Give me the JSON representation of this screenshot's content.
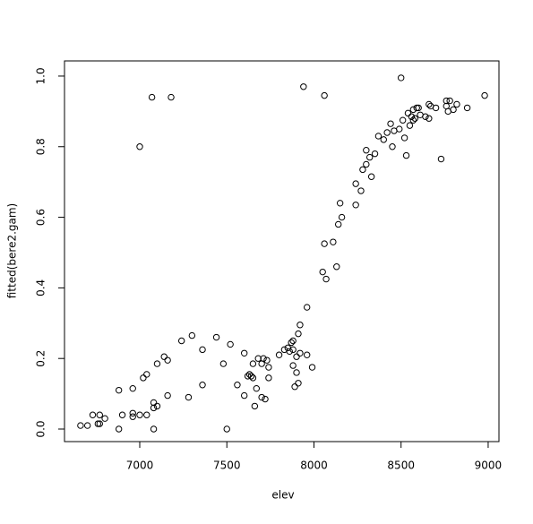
{
  "chart_data": {
    "type": "scatter",
    "x_label": "elev",
    "y_label": "fitted(bere2.gam)",
    "x": [
      6660,
      6700,
      6730,
      6760,
      6770,
      6770,
      6800,
      6880,
      6880,
      6900,
      6960,
      6960,
      6960,
      7000,
      7000,
      7020,
      7040,
      7040,
      7080,
      7080,
      7070,
      7080,
      7100,
      7100,
      7140,
      7160,
      7160,
      7180,
      7240,
      7280,
      7300,
      7360,
      7360,
      7440,
      7480,
      7500,
      7520,
      7560,
      7600,
      7600,
      7620,
      7630,
      7640,
      7650,
      7650,
      7660,
      7670,
      7680,
      7700,
      7710,
      7700,
      7720,
      7730,
      7740,
      7740,
      7800,
      7830,
      7850,
      7860,
      7870,
      7880,
      7880,
      7880,
      7890,
      7900,
      7900,
      7910,
      7910,
      7920,
      7920,
      7940,
      7960,
      7990,
      7960,
      8050,
      8060,
      8060,
      8070,
      8110,
      8130,
      8140,
      8150,
      8160,
      8240,
      8240,
      8270,
      8280,
      8300,
      8300,
      8320,
      8330,
      8350,
      8370,
      8400,
      8420,
      8440,
      8450,
      8460,
      8490,
      8500,
      8510,
      8520,
      8530,
      8540,
      8550,
      8560,
      8570,
      8570,
      8580,
      8590,
      8600,
      8610,
      8640,
      8660,
      8660,
      8670,
      8700,
      8730,
      8760,
      8760,
      8780,
      8770,
      8800,
      8820,
      8880,
      8980
    ],
    "y": [
      0.01,
      0.01,
      0.04,
      0.015,
      0.04,
      0.015,
      0.03,
      0.11,
      0.0,
      0.04,
      0.115,
      0.045,
      0.035,
      0.04,
      0.8,
      0.145,
      0.155,
      0.04,
      0.075,
      0.06,
      0.94,
      0.0,
      0.185,
      0.065,
      0.205,
      0.195,
      0.095,
      0.94,
      0.25,
      0.09,
      0.265,
      0.125,
      0.225,
      0.26,
      0.185,
      0.0,
      0.24,
      0.125,
      0.215,
      0.095,
      0.15,
      0.155,
      0.15,
      0.185,
      0.145,
      0.065,
      0.115,
      0.2,
      0.185,
      0.2,
      0.09,
      0.085,
      0.195,
      0.145,
      0.175,
      0.21,
      0.225,
      0.23,
      0.22,
      0.245,
      0.225,
      0.25,
      0.18,
      0.12,
      0.205,
      0.16,
      0.27,
      0.13,
      0.215,
      0.295,
      0.97,
      0.21,
      0.175,
      0.345,
      0.445,
      0.945,
      0.525,
      0.425,
      0.53,
      0.46,
      0.58,
      0.64,
      0.6,
      0.695,
      0.635,
      0.675,
      0.735,
      0.79,
      0.75,
      0.77,
      0.715,
      0.78,
      0.83,
      0.82,
      0.84,
      0.865,
      0.8,
      0.845,
      0.85,
      0.995,
      0.875,
      0.825,
      0.775,
      0.895,
      0.86,
      0.885,
      0.875,
      0.905,
      0.88,
      0.91,
      0.91,
      0.89,
      0.885,
      0.88,
      0.92,
      0.915,
      0.91,
      0.765,
      0.915,
      0.93,
      0.93,
      0.9,
      0.905,
      0.92,
      0.91,
      0.945
    ],
    "color": "#000000",
    "xlim": [
      6568,
      9062
    ],
    "ylim": [
      -0.0355,
      1.043
    ],
    "xticks": [
      7000,
      7500,
      8000,
      8500,
      9000
    ],
    "yticks": [
      {
        "value": 0,
        "label": "0.0"
      },
      0.2,
      0.4,
      0.6,
      0.8,
      {
        "value": 1,
        "label": "1.0"
      }
    ]
  }
}
